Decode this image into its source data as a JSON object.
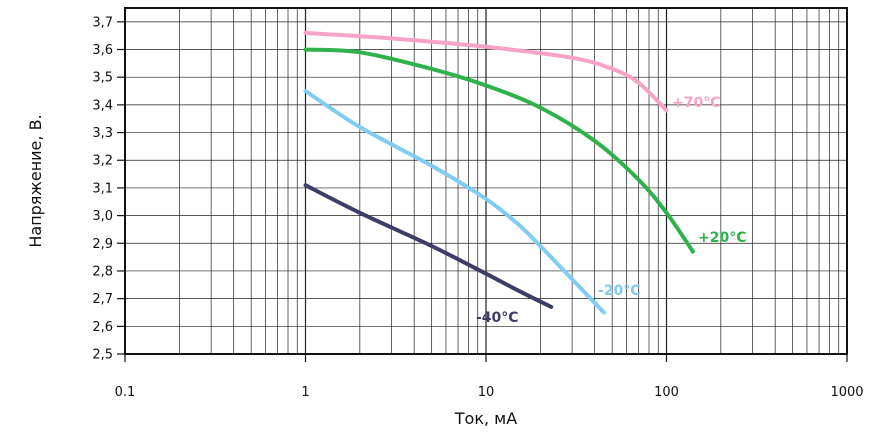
{
  "chart_data": {
    "type": "line",
    "x_scale": "log",
    "grid": true,
    "xlabel": "Ток, мА",
    "ylabel": "Напряжение, В.",
    "xlim": [
      0.1,
      1000
    ],
    "ylim": [
      2.5,
      3.75
    ],
    "x_ticks": [
      {
        "value": 0.1,
        "label": "0.1"
      },
      {
        "value": 1,
        "label": "1"
      },
      {
        "value": 10,
        "label": "10"
      },
      {
        "value": 100,
        "label": "100"
      },
      {
        "value": 1000,
        "label": "1000"
      }
    ],
    "y_ticks": [
      {
        "value": 2.5,
        "label": "2,5"
      },
      {
        "value": 2.6,
        "label": "2,6"
      },
      {
        "value": 2.7,
        "label": "2,7"
      },
      {
        "value": 2.8,
        "label": "2,8"
      },
      {
        "value": 2.9,
        "label": "2,9"
      },
      {
        "value": 3.0,
        "label": "3,0"
      },
      {
        "value": 3.1,
        "label": "3,1"
      },
      {
        "value": 3.2,
        "label": "3,2"
      },
      {
        "value": 3.3,
        "label": "3,3"
      },
      {
        "value": 3.4,
        "label": "3,4"
      },
      {
        "value": 3.5,
        "label": "3,5"
      },
      {
        "value": 3.6,
        "label": "3,6"
      },
      {
        "value": 3.7,
        "label": "3,7"
      }
    ],
    "series": [
      {
        "name": "+70°C",
        "color": "#f7a3c7",
        "points": [
          [
            1,
            3.66
          ],
          [
            3,
            3.64
          ],
          [
            10,
            3.61
          ],
          [
            30,
            3.57
          ],
          [
            50,
            3.53
          ],
          [
            70,
            3.48
          ],
          [
            100,
            3.38
          ]
        ]
      },
      {
        "name": "+20°C",
        "color": "#2fb24c",
        "points": [
          [
            1,
            3.6
          ],
          [
            2,
            3.59
          ],
          [
            5,
            3.53
          ],
          [
            10,
            3.47
          ],
          [
            20,
            3.39
          ],
          [
            40,
            3.27
          ],
          [
            70,
            3.13
          ],
          [
            100,
            3.01
          ],
          [
            140,
            2.87
          ]
        ]
      },
      {
        "name": "-20°C",
        "color": "#7fcdf2",
        "points": [
          [
            1,
            3.45
          ],
          [
            2,
            3.32
          ],
          [
            5,
            3.18
          ],
          [
            10,
            3.06
          ],
          [
            15,
            2.97
          ],
          [
            20,
            2.89
          ],
          [
            30,
            2.77
          ],
          [
            45,
            2.65
          ]
        ]
      },
      {
        "name": "-40°C",
        "color": "#3b3f66",
        "points": [
          [
            1,
            3.11
          ],
          [
            2,
            3.01
          ],
          [
            5,
            2.89
          ],
          [
            10,
            2.79
          ],
          [
            15,
            2.73
          ],
          [
            23,
            2.67
          ]
        ]
      }
    ]
  }
}
